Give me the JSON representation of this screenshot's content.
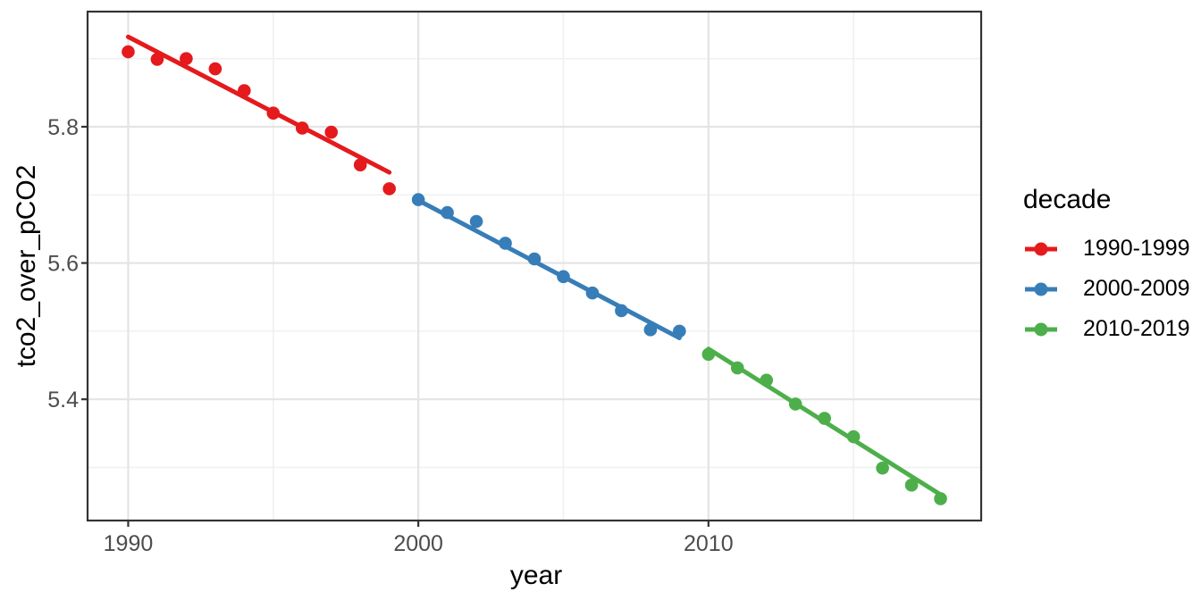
{
  "figure": {
    "background": "#ffffff",
    "panel_border_color": "#333333",
    "grid_major_color": "#e4e4e4",
    "grid_minor_color": "#f0f0f0",
    "tick_color": "#333333",
    "tick_label_color": "#4d4d4d"
  },
  "chart_data": {
    "type": "scatter",
    "title": "",
    "xlabel": "year",
    "ylabel": "tco2_over_pCO2",
    "x_domain": [
      1988.6,
      2019.4
    ],
    "y_domain": [
      5.222,
      5.969
    ],
    "x_ticks": {
      "values": [
        1990,
        2000,
        2010
      ],
      "labels": [
        "1990",
        "2000",
        "2010"
      ]
    },
    "x_minor": [
      1995,
      2005,
      2015
    ],
    "y_ticks": {
      "values": [
        5.8,
        5.6,
        5.4
      ],
      "labels": [
        "5.8",
        "5.6",
        "5.4"
      ]
    },
    "y_minor": [
      5.9,
      5.7,
      5.5,
      5.3
    ],
    "grid": true,
    "legend": {
      "title": "decade",
      "position": "right"
    },
    "series": [
      {
        "name": "1990-1999",
        "color": "#E41A1C",
        "x": [
          1990,
          1991,
          1992,
          1993,
          1994,
          1995,
          1996,
          1997,
          1998,
          1999
        ],
        "y": [
          5.91,
          5.899,
          5.9,
          5.885,
          5.853,
          5.82,
          5.798,
          5.792,
          5.744,
          5.709
        ],
        "trend": {
          "x": [
            1990,
            1999
          ],
          "y": [
            5.932,
            5.733
          ]
        }
      },
      {
        "name": "2000-2009",
        "color": "#377EB8",
        "x": [
          2000,
          2001,
          2002,
          2003,
          2004,
          2005,
          2006,
          2007,
          2008,
          2009
        ],
        "y": [
          5.693,
          5.674,
          5.661,
          5.629,
          5.606,
          5.58,
          5.556,
          5.53,
          5.502,
          5.5
        ],
        "trend": {
          "x": [
            2000,
            2009
          ],
          "y": [
            5.692,
            5.49
          ]
        }
      },
      {
        "name": "2010-2019",
        "color": "#4DAF4A",
        "x": [
          2010,
          2011,
          2012,
          2013,
          2014,
          2015,
          2016,
          2017,
          2018
        ],
        "y": [
          5.466,
          5.446,
          5.428,
          5.393,
          5.372,
          5.345,
          5.299,
          5.274,
          5.254
        ],
        "trend": {
          "x": [
            2010,
            2018
          ],
          "y": [
            5.474,
            5.26
          ]
        }
      }
    ]
  }
}
